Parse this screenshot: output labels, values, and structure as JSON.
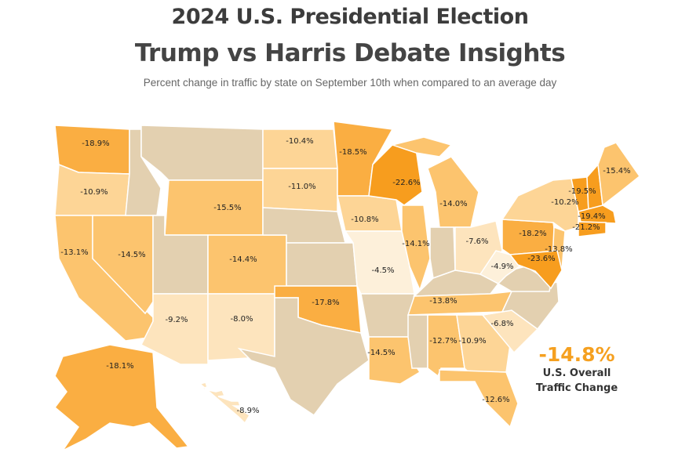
{
  "header": {
    "title": "2024 U.S. Presidential Election",
    "subtitle": "Trump vs Harris Debate Insights",
    "description": "Percent change in traffic by state on September 10th when compared to an average day"
  },
  "overall": {
    "value": "-14.8%",
    "label_line1": "U.S. Overall",
    "label_line2": "Traffic Change"
  },
  "colors": {
    "accent": "#f5a020",
    "no_label": "#e3d0b0",
    "scale": [
      "#fdf0da",
      "#fde4bd",
      "#fdd596",
      "#fcc46e",
      "#faae42",
      "#f79d1e"
    ]
  },
  "map_data": {
    "type": "choropleth",
    "metric": "percent change in traffic",
    "values": {
      "WA": "-18.9%",
      "OR": "-10.9%",
      "CA": "-13.1%",
      "NV": "-14.5%",
      "WY": "-15.5%",
      "CO": "-14.4%",
      "AZ": "-9.2%",
      "NM": "-8.0%",
      "ND": "-10.4%",
      "SD": "-11.0%",
      "OK": "-17.8%",
      "MN": "-18.5%",
      "IA": "-10.8%",
      "MO": "-4.5%",
      "LA": "-14.5%",
      "WI": "-22.6%",
      "IL": "-14.1%",
      "MI": "-14.0%",
      "OH": "-7.6%",
      "TN": "-13.8%",
      "AL": "-12.7%",
      "GA": "-10.9%",
      "FL": "-12.6%",
      "SC": "-6.8%",
      "WV": "-4.9%",
      "PA": "-18.2%",
      "NY": "-10.2%",
      "NJ": "-13.8%",
      "MD": "-23.6%",
      "VT": "-19.5%",
      "ME": "-15.4%",
      "MA": "-19.4%",
      "CT": "-21.2%",
      "AK": "-18.1%",
      "HI": "-8.9%"
    }
  }
}
